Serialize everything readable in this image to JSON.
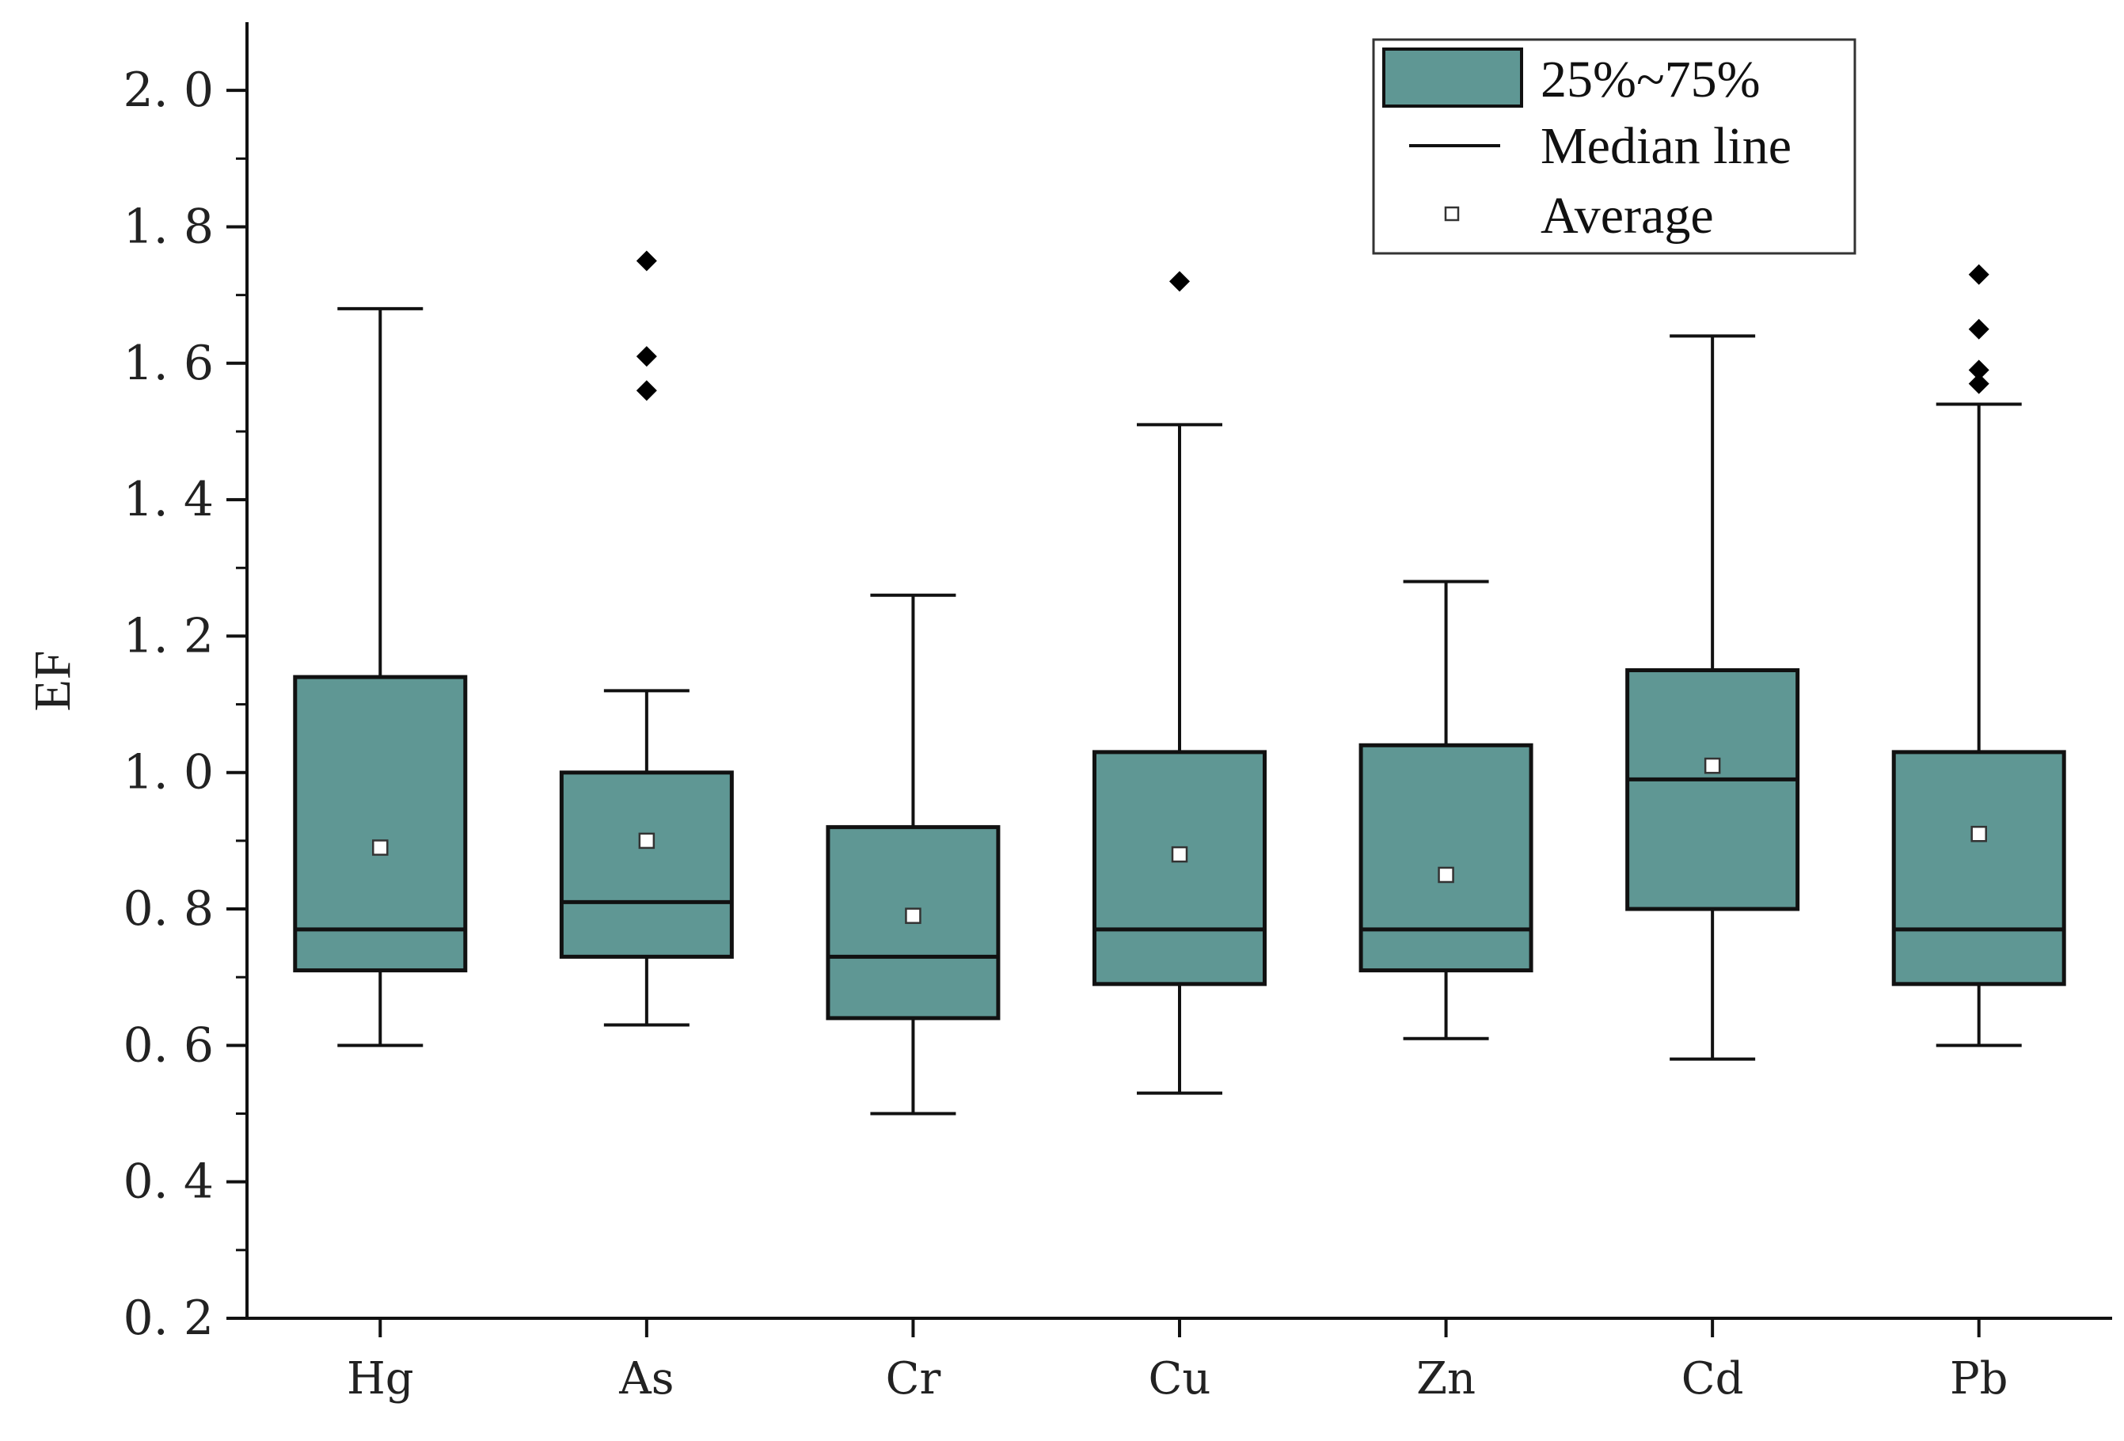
{
  "chart_data": {
    "type": "box",
    "title": "",
    "xlabel": "",
    "ylabel": "EF",
    "ylim": [
      0.2,
      2.1
    ],
    "yticks": [
      0.2,
      0.4,
      0.6,
      0.8,
      1.0,
      1.2,
      1.4,
      1.6,
      1.8,
      2.0
    ],
    "ytick_labels": [
      "0. 2",
      "0. 4",
      "0. 6",
      "0. 8",
      "1. 0",
      "1. 2",
      "1. 4",
      "1. 6",
      "1. 8",
      "2. 0"
    ],
    "categories": [
      "Hg",
      "As",
      "Cr",
      "Cu",
      "Zn",
      "Cd",
      "Pb"
    ],
    "boxes": [
      {
        "name": "Hg",
        "whisker_low": 0.6,
        "q1": 0.71,
        "median": 0.77,
        "q3": 1.14,
        "whisker_high": 1.68,
        "mean": 0.89,
        "outliers": []
      },
      {
        "name": "As",
        "whisker_low": 0.63,
        "q1": 0.73,
        "median": 0.81,
        "q3": 1.0,
        "whisker_high": 1.12,
        "mean": 0.9,
        "outliers": [
          1.56,
          1.61,
          1.75
        ]
      },
      {
        "name": "Cr",
        "whisker_low": 0.5,
        "q1": 0.64,
        "median": 0.73,
        "q3": 0.92,
        "whisker_high": 1.26,
        "mean": 0.79,
        "outliers": []
      },
      {
        "name": "Cu",
        "whisker_low": 0.53,
        "q1": 0.69,
        "median": 0.77,
        "q3": 1.03,
        "whisker_high": 1.51,
        "mean": 0.88,
        "outliers": [
          1.72
        ]
      },
      {
        "name": "Zn",
        "whisker_low": 0.61,
        "q1": 0.71,
        "median": 0.77,
        "q3": 1.04,
        "whisker_high": 1.28,
        "mean": 0.85,
        "outliers": []
      },
      {
        "name": "Cd",
        "whisker_low": 0.58,
        "q1": 0.8,
        "median": 0.99,
        "q3": 1.15,
        "whisker_high": 1.64,
        "mean": 1.01,
        "outliers": []
      },
      {
        "name": "Pb",
        "whisker_low": 0.6,
        "q1": 0.69,
        "median": 0.77,
        "q3": 1.03,
        "whisker_high": 1.54,
        "mean": 0.91,
        "outliers": [
          1.57,
          1.59,
          1.65,
          1.73
        ]
      }
    ],
    "legend": {
      "position": "top-right",
      "entries": [
        "25%~75%",
        "Median line",
        "Average"
      ]
    },
    "colors": {
      "box_fill": "#5f9794",
      "line": "#111111",
      "outlier": "#000000",
      "mean_marker_fill": "#ffffff"
    }
  }
}
